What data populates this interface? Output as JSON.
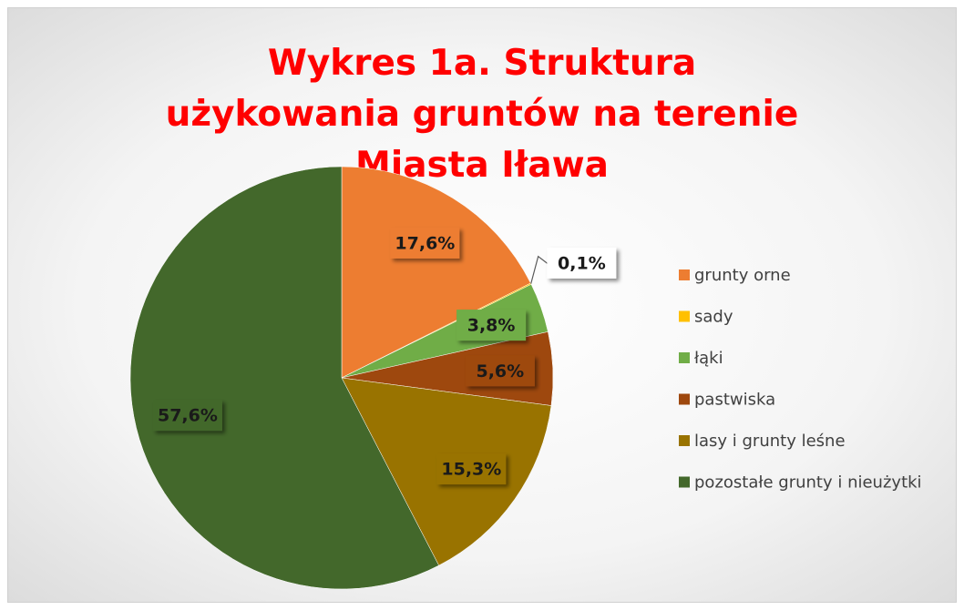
{
  "chart_data": {
    "type": "pie",
    "title": "Wykres 1a. Struktura użykowania gruntów na terenie Miasta Iława",
    "categories": [
      "grunty orne",
      "sady",
      "łąki",
      "pastwiska",
      "lasy i grunty leśne",
      "pozostałe grunty i nieużytki"
    ],
    "values": [
      17.6,
      0.1,
      3.8,
      5.6,
      15.3,
      57.6
    ],
    "value_labels": [
      "17,6%",
      "0,1%",
      "3,8%",
      "5,6%",
      "15,3%",
      "57,6%"
    ],
    "colors": [
      "#ED7D31",
      "#FFC000",
      "#70AD47",
      "#9E480E",
      "#997300",
      "#43682B"
    ],
    "legend": "right"
  }
}
